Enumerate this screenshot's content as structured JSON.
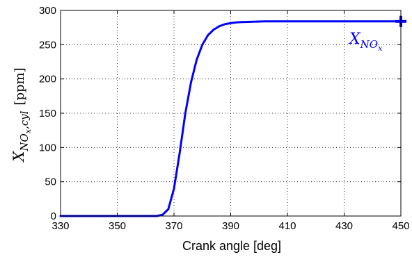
{
  "chart_data": {
    "type": "line",
    "xlabel": "Crank angle [deg]",
    "ylabel": {
      "main": "X",
      "sub": "NO",
      "subsub": "x",
      "sub_tail": ",cyl",
      "unit": "[ppm]"
    },
    "xlim": [
      330,
      450
    ],
    "ylim": [
      0,
      300
    ],
    "xticks": [
      330,
      350,
      370,
      390,
      410,
      430,
      450
    ],
    "yticks": [
      0,
      50,
      100,
      150,
      200,
      250,
      300
    ],
    "grid": true,
    "series": [
      {
        "color": "#0000ff",
        "x": [
          330,
          350,
          364,
          366,
          368,
          370,
          372,
          374,
          376,
          378,
          380,
          382,
          384,
          386,
          388,
          390,
          392,
          394,
          398,
          402,
          410,
          430,
          450
        ],
        "y": [
          0,
          0,
          0,
          2,
          10,
          40,
          92,
          150,
          195,
          228,
          250,
          264,
          272,
          277,
          280,
          281.5,
          282.5,
          283,
          283.5,
          284,
          284,
          284,
          284
        ]
      }
    ],
    "annotation": {
      "main": "X",
      "sub": "NO",
      "subsub": "x",
      "color": "#0000ff",
      "marker_x": 450,
      "marker_y": 284,
      "marker": "plus"
    }
  }
}
